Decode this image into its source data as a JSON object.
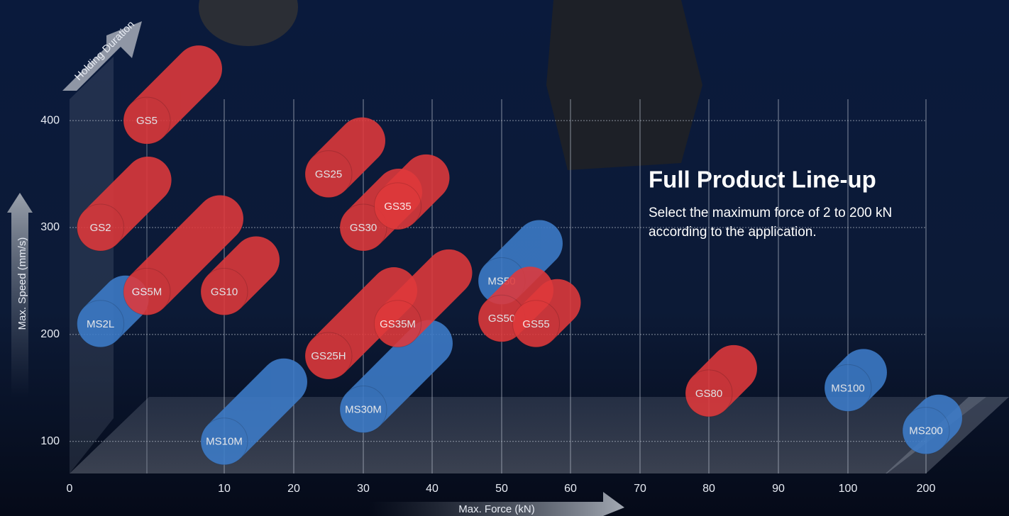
{
  "chart_data": {
    "type": "scatter",
    "title": "Full Product Line-up",
    "subtitle_lines": [
      "Select the maximum force of 2 to 200 kN",
      "according to the application."
    ],
    "x_label": "Max. Force (kN)",
    "y_label": "Max. Speed (mm/s)",
    "z_label": "Holding Duration",
    "xlim": [
      0,
      200
    ],
    "xticks": [
      0,
      10,
      20,
      30,
      40,
      50,
      60,
      70,
      80,
      90,
      100,
      200
    ],
    "ylim": [
      70,
      420
    ],
    "yticks": [
      100,
      200,
      300,
      400
    ],
    "grid": true,
    "points": [
      {
        "name": "MS2L",
        "x": 2,
        "y": 210,
        "holding": 35,
        "color": "#3d7cc9"
      },
      {
        "name": "GS5",
        "x": 5,
        "y": 400,
        "holding": 73,
        "color": "#e0393b"
      },
      {
        "name": "GS2",
        "x": 2,
        "y": 300,
        "holding": 67,
        "color": "#e0393b"
      },
      {
        "name": "GS5M",
        "x": 5,
        "y": 240,
        "holding": 103,
        "color": "#e0393b"
      },
      {
        "name": "GS10",
        "x": 10,
        "y": 240,
        "holding": 45,
        "color": "#e0393b"
      },
      {
        "name": "MS10M",
        "x": 10,
        "y": 100,
        "holding": 84,
        "color": "#3d7cc9"
      },
      {
        "name": "GS25",
        "x": 25,
        "y": 350,
        "holding": 47,
        "color": "#e0393b"
      },
      {
        "name": "GS30",
        "x": 30,
        "y": 300,
        "holding": 50,
        "color": "#e0393b"
      },
      {
        "name": "GS35",
        "x": 35,
        "y": 320,
        "holding": 40,
        "color": "#e0393b"
      },
      {
        "name": "GS25H",
        "x": 25,
        "y": 180,
        "holding": 92,
        "color": "#e0393b"
      },
      {
        "name": "MS30M",
        "x": 30,
        "y": 130,
        "holding": 93,
        "color": "#3d7cc9"
      },
      {
        "name": "GS35M",
        "x": 35,
        "y": 210,
        "holding": 72,
        "color": "#e0393b"
      },
      {
        "name": "MS50",
        "x": 50,
        "y": 250,
        "holding": 53,
        "color": "#3d7cc9"
      },
      {
        "name": "GS50",
        "x": 50,
        "y": 215,
        "holding": 40,
        "color": "#e0393b"
      },
      {
        "name": "GS55",
        "x": 55,
        "y": 210,
        "holding": 30,
        "color": "#e0393b"
      },
      {
        "name": "GS80",
        "x": 80,
        "y": 145,
        "holding": 35,
        "color": "#e0393b"
      },
      {
        "name": "MS100",
        "x": 100,
        "y": 150,
        "holding": 22,
        "color": "#3d7cc9"
      },
      {
        "name": "MS200",
        "x": 200,
        "y": 110,
        "holding": 18,
        "color": "#3d7cc9"
      }
    ]
  }
}
